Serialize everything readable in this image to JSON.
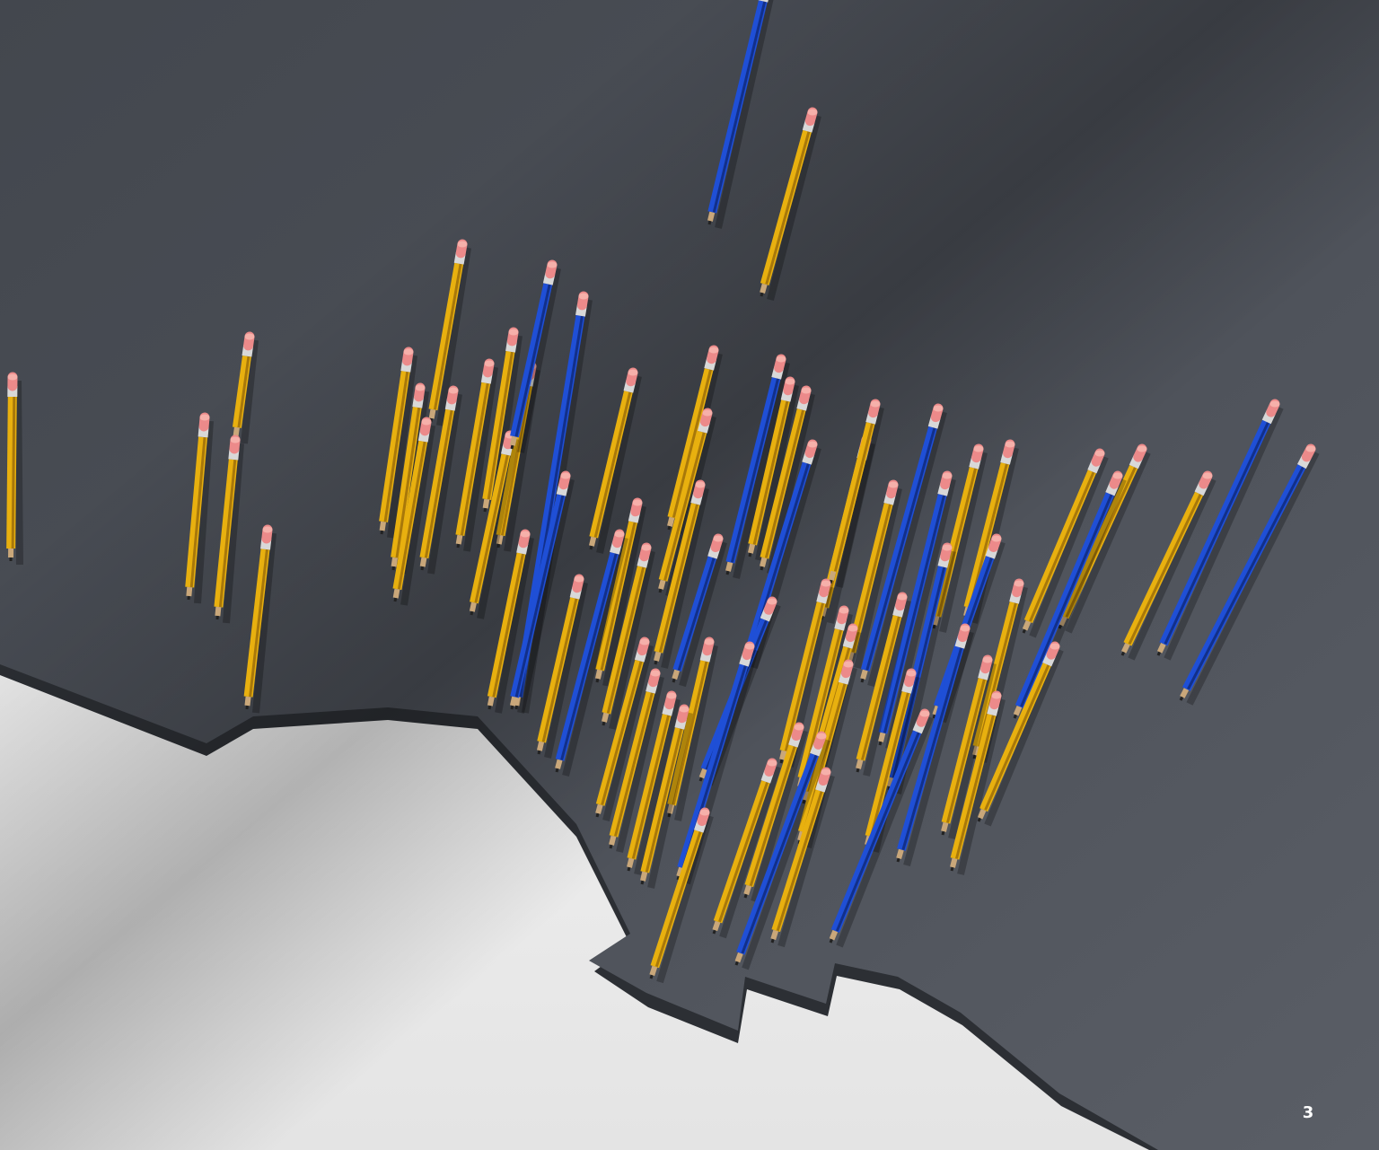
{
  "page_number": "3"
}
